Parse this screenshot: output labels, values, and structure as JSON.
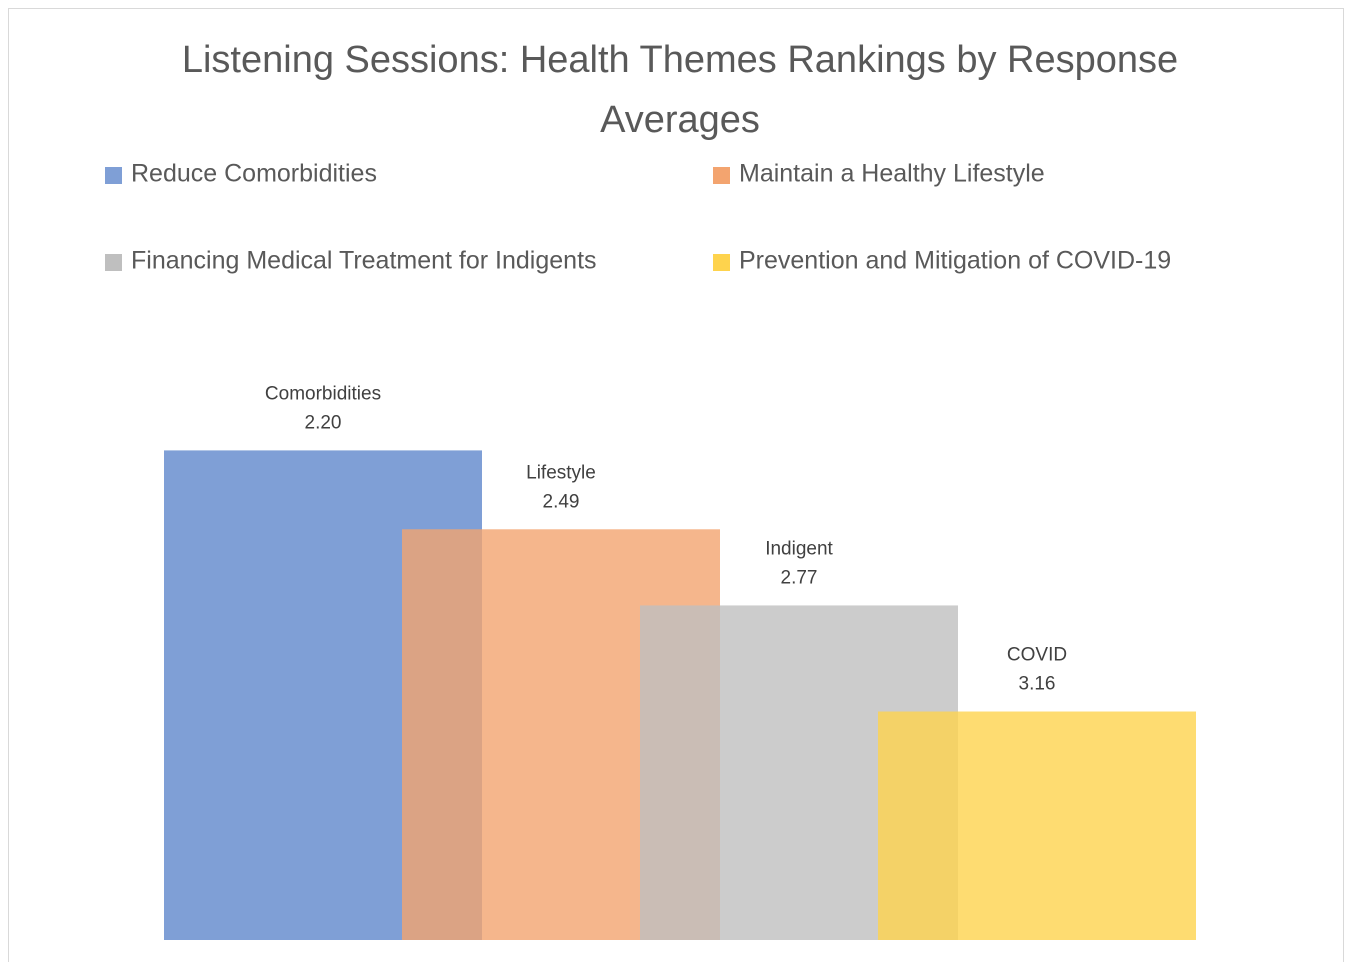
{
  "chart_data": {
    "type": "bar",
    "title": "Listening Sessions: Health Themes Rankings by Response Averages",
    "series": [
      {
        "name": "Reduce Comorbidities",
        "label": "Comorbidities",
        "color": "#7f9fd6",
        "values": [
          2.2
        ],
        "value_labels": [
          "2.20"
        ]
      },
      {
        "name": "Maintain a Healthy Lifestyle",
        "label": "Lifestyle",
        "color": "#f3a46f",
        "values": [
          2.49
        ]
      },
      {
        "name": "Financing Medical Treatment for Indigents",
        "label": "Indigent",
        "color": "#bfbfbf",
        "values": [
          2.77
        ]
      },
      {
        "name": "Prevention and Mitigation of COVID-19",
        "label": "COVID",
        "color": "#fed34d",
        "values": [
          3.16
        ]
      }
    ],
    "ylim": [
      4,
      0
    ],
    "legend": "top"
  }
}
